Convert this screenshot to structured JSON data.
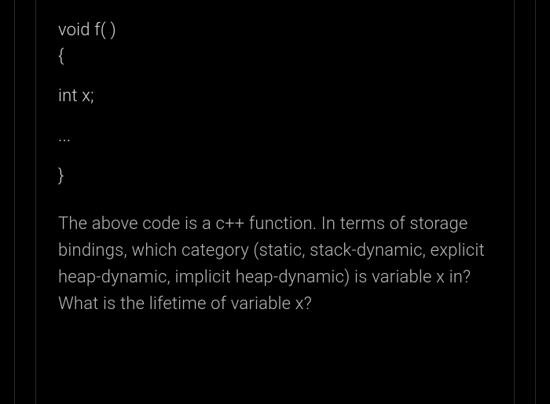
{
  "colors": {
    "background": "#000000",
    "code_text": "#d8d8d8",
    "question_text": "#b8b8b8",
    "border": "#2a2a2a"
  },
  "typography": {
    "font_family": "system-ui",
    "code_fontsize": 22,
    "question_fontsize": 22,
    "font_weight": 300,
    "line_height": 1.55
  },
  "code": {
    "line1": "void f( )",
    "line2": "{",
    "line3": "int x;",
    "line4": "...",
    "line5": "}"
  },
  "question": "The above code is a c++ function. In terms of storage bindings, which category (static, stack-dynamic, explicit heap-dynamic, implicit heap-dynamic) is variable x in? What is the lifetime of variable x?"
}
